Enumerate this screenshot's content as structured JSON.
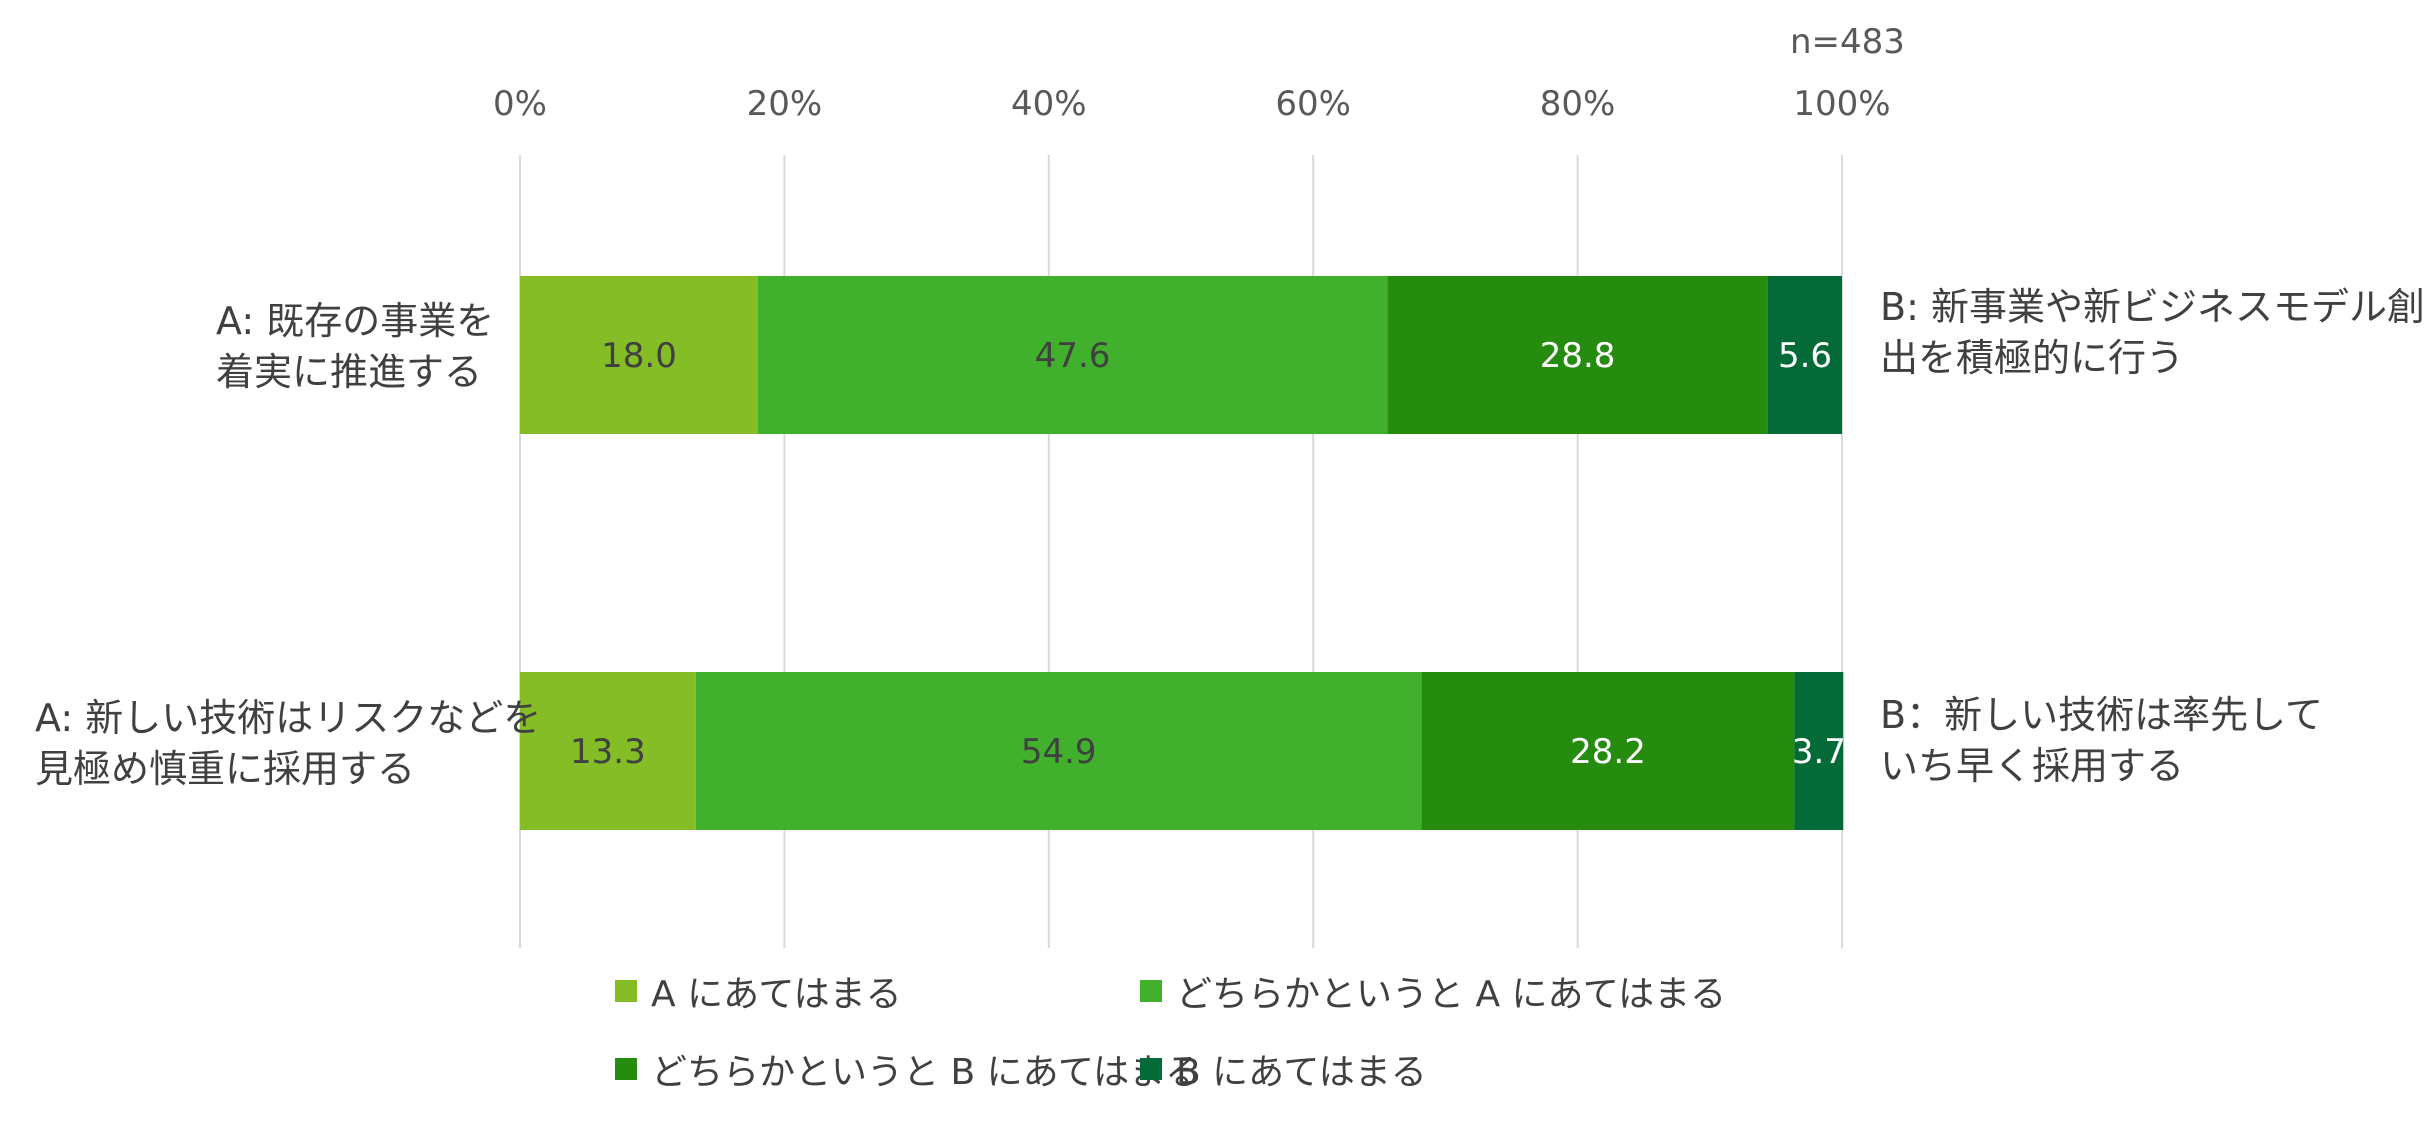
{
  "chart_data": {
    "type": "bar",
    "orientation": "horizontal",
    "stacked": true,
    "sample_note": "n=483",
    "x_ticks": [
      "0%",
      "20%",
      "40%",
      "60%",
      "80%",
      "100%"
    ],
    "xlim": [
      0,
      100
    ],
    "grid": true,
    "legend_position": "bottom",
    "series": [
      {
        "name": "A にあてはまる",
        "color": "#84BD26",
        "values": [
          18.0,
          13.3
        ]
      },
      {
        "name": "どちらかというと A にあてはまる",
        "color": "#41B02D",
        "values": [
          47.6,
          54.9
        ]
      },
      {
        "name": "どちらかというと B にあてはまる",
        "color": "#268C10",
        "values": [
          28.8,
          28.2
        ]
      },
      {
        "name": "B にあてはまる",
        "color": "#046A38",
        "values": [
          5.6,
          3.7
        ]
      }
    ],
    "value_labels": [
      [
        "18.0",
        "47.6",
        "28.8",
        "5.6"
      ],
      [
        "13.3",
        "54.9",
        "28.2",
        "3.7"
      ]
    ],
    "label_colors": [
      "#404040",
      "#404040",
      "#ffffff",
      "#ffffff"
    ],
    "rows": [
      {
        "left": [
          "A: 既存の事業を",
          "着実に推進する"
        ],
        "right": [
          "B: 新事業や新ビジネスモデル創",
          "出を積極的に行う"
        ]
      },
      {
        "left": [
          "A: 新しい技術はリスクなどを",
          "見極め慎重に採用する"
        ],
        "right": [
          "B：新しい技術は率先して",
          "いち早く採用する"
        ]
      }
    ]
  }
}
